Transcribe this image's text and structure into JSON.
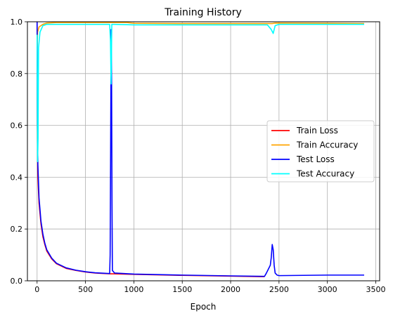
{
  "chart_data": {
    "type": "line",
    "title": "Training History",
    "xlabel": "Epoch",
    "ylabel": "",
    "xlim": [
      -100,
      3540
    ],
    "ylim": [
      0,
      1
    ],
    "x_ticks": [
      0,
      500,
      1000,
      1500,
      2000,
      2500,
      3000,
      3500
    ],
    "y_ticks": [
      0.0,
      0.2,
      0.4,
      0.6,
      0.8,
      1.0
    ],
    "x_tick_labels": [
      "0",
      "500",
      "1000",
      "1500",
      "2000",
      "2500",
      "3000",
      "3500"
    ],
    "y_tick_labels": [
      "0.0",
      "0.2",
      "0.4",
      "0.6",
      "0.8",
      "1.0"
    ],
    "grid": true,
    "legend_position": "center-right",
    "series": [
      {
        "name": "Train Loss",
        "color": "#ff0000",
        "points": [
          [
            0,
            1.0
          ],
          [
            3,
            0.55
          ],
          [
            8,
            0.4
          ],
          [
            20,
            0.3
          ],
          [
            40,
            0.22
          ],
          [
            60,
            0.17
          ],
          [
            80,
            0.14
          ],
          [
            100,
            0.115
          ],
          [
            150,
            0.085
          ],
          [
            200,
            0.066
          ],
          [
            300,
            0.048
          ],
          [
            400,
            0.04
          ],
          [
            500,
            0.034
          ],
          [
            600,
            0.03
          ],
          [
            700,
            0.028
          ],
          [
            760,
            0.027
          ],
          [
            800,
            0.027
          ],
          [
            1000,
            0.025
          ],
          [
            1500,
            0.021
          ],
          [
            2000,
            0.018
          ],
          [
            2300,
            0.016
          ],
          [
            2350,
            0.016
          ]
        ]
      },
      {
        "name": "Train Accuracy",
        "color": "#ffa500",
        "points": [
          [
            0,
            0.9
          ],
          [
            5,
            0.96
          ],
          [
            20,
            0.98
          ],
          [
            60,
            0.99
          ],
          [
            100,
            0.995
          ],
          [
            200,
            0.997
          ],
          [
            500,
            0.997
          ],
          [
            930,
            0.997
          ],
          [
            1000,
            0.994
          ],
          [
            1500,
            0.993
          ],
          [
            2000,
            0.993
          ],
          [
            2430,
            0.993
          ],
          [
            2460,
            0.995
          ],
          [
            3000,
            0.994
          ],
          [
            3380,
            0.993
          ]
        ]
      },
      {
        "name": "Test Loss",
        "color": "#0000ff",
        "points": [
          [
            0,
            1.0
          ],
          [
            3,
            0.6
          ],
          [
            8,
            0.45
          ],
          [
            20,
            0.32
          ],
          [
            40,
            0.23
          ],
          [
            60,
            0.18
          ],
          [
            80,
            0.145
          ],
          [
            100,
            0.12
          ],
          [
            150,
            0.088
          ],
          [
            200,
            0.068
          ],
          [
            300,
            0.05
          ],
          [
            400,
            0.041
          ],
          [
            500,
            0.035
          ],
          [
            600,
            0.031
          ],
          [
            700,
            0.029
          ],
          [
            750,
            0.028
          ],
          [
            755,
            0.1
          ],
          [
            760,
            0.5
          ],
          [
            765,
            0.97
          ],
          [
            770,
            0.76
          ],
          [
            774,
            0.3
          ],
          [
            778,
            0.04
          ],
          [
            800,
            0.03
          ],
          [
            1000,
            0.026
          ],
          [
            1500,
            0.022
          ],
          [
            2000,
            0.019
          ],
          [
            2350,
            0.017
          ],
          [
            2370,
            0.03
          ],
          [
            2390,
            0.045
          ],
          [
            2410,
            0.06
          ],
          [
            2420,
            0.09
          ],
          [
            2430,
            0.14
          ],
          [
            2440,
            0.12
          ],
          [
            2450,
            0.06
          ],
          [
            2460,
            0.03
          ],
          [
            2480,
            0.022
          ],
          [
            2500,
            0.02
          ],
          [
            3000,
            0.022
          ],
          [
            3380,
            0.022
          ]
        ]
      },
      {
        "name": "Test Accuracy",
        "color": "#00ffff",
        "points": [
          [
            0,
            0.95
          ],
          [
            5,
            0.46
          ],
          [
            10,
            0.55
          ],
          [
            15,
            0.9
          ],
          [
            30,
            0.96
          ],
          [
            60,
            0.985
          ],
          [
            100,
            0.99
          ],
          [
            400,
            0.99
          ],
          [
            750,
            0.99
          ],
          [
            758,
            0.93
          ],
          [
            765,
            0.76
          ],
          [
            772,
            0.99
          ],
          [
            800,
            0.99
          ],
          [
            1000,
            0.988
          ],
          [
            1500,
            0.988
          ],
          [
            2000,
            0.988
          ],
          [
            2380,
            0.988
          ],
          [
            2420,
            0.97
          ],
          [
            2440,
            0.955
          ],
          [
            2460,
            0.985
          ],
          [
            2500,
            0.99
          ],
          [
            3000,
            0.99
          ],
          [
            3380,
            0.99
          ]
        ]
      }
    ]
  }
}
